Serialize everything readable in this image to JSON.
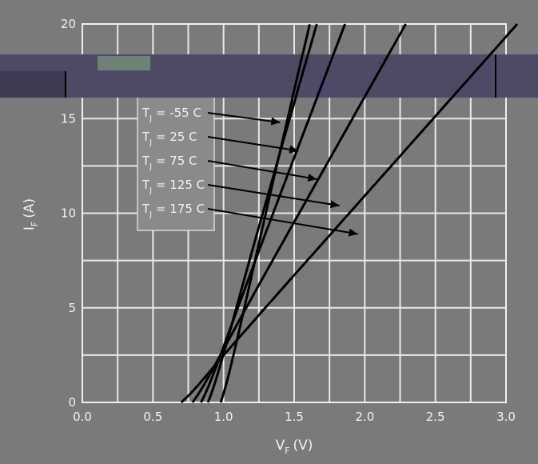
{
  "chart_data": {
    "type": "line",
    "xlabel": "V",
    "xlabel_sub": "F",
    "xlabel_unit": "(V)",
    "ylabel": "I",
    "ylabel_sub": "F",
    "ylabel_unit": "(A)",
    "xlim": [
      0.0,
      3.0
    ],
    "ylim": [
      0,
      20
    ],
    "x_ticks": [
      "0.0",
      "0.5",
      "1.0",
      "1.5",
      "2.0",
      "2.5",
      "3.0"
    ],
    "y_ticks": [
      "0",
      "5",
      "10",
      "15",
      "20"
    ],
    "grid": true,
    "legend_position": "top-left",
    "series": [
      {
        "name": "T  = -55 C",
        "sub": "J",
        "x": [
          0.98,
          1.61
        ],
        "y": [
          0,
          20
        ],
        "arrow_to": [
          1.4,
          14.8
        ]
      },
      {
        "name": "T  = 25 C",
        "sub": "J",
        "x": [
          0.89,
          1.66
        ],
        "y": [
          0,
          20
        ],
        "arrow_to": [
          1.53,
          13.3
        ]
      },
      {
        "name": "T  = 75 C",
        "sub": "J",
        "x": [
          0.84,
          1.86
        ],
        "y": [
          0,
          20
        ],
        "arrow_to": [
          1.66,
          11.8
        ]
      },
      {
        "name": "T  = 125 C",
        "sub": "J",
        "x": [
          0.78,
          2.29
        ],
        "y": [
          0,
          20
        ],
        "arrow_to": [
          1.82,
          10.4
        ]
      },
      {
        "name": "T  = 175 C",
        "sub": "J",
        "x": [
          0.7,
          3.08
        ],
        "y": [
          0,
          20
        ],
        "arrow_to": [
          1.95,
          8.9
        ]
      }
    ]
  }
}
